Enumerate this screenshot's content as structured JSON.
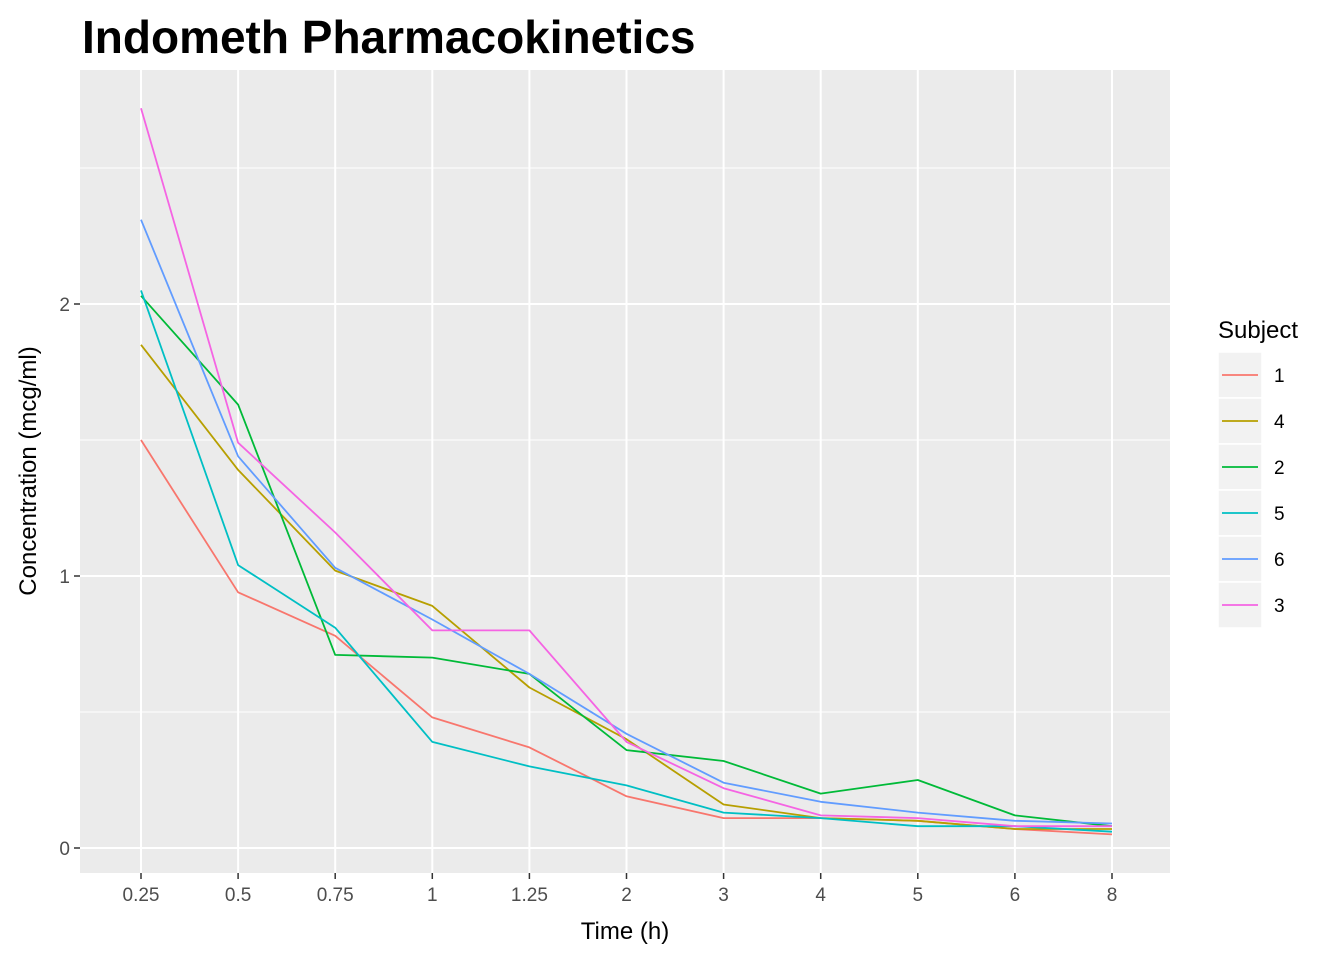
{
  "chart_data": {
    "type": "line",
    "title": "Indometh Pharmacokinetics",
    "xlabel": "Time (h)",
    "ylabel": "Concentration (mcg/ml)",
    "x_scale": "categorical",
    "categories": [
      "0.25",
      "0.5",
      "0.75",
      "1",
      "1.25",
      "2",
      "3",
      "4",
      "5",
      "6",
      "8"
    ],
    "yticks": [
      0,
      1,
      2
    ],
    "ylim": [
      -0.1,
      2.8
    ],
    "grid": true,
    "legend_title": "Subject",
    "legend_position": "right",
    "series": [
      {
        "name": "1",
        "color": "#F8766D",
        "values": [
          1.5,
          0.94,
          0.78,
          0.48,
          0.37,
          0.19,
          0.11,
          0.11,
          0.1,
          0.07,
          0.05
        ]
      },
      {
        "name": "4",
        "color": "#B79F00",
        "values": [
          1.85,
          1.39,
          1.02,
          0.89,
          0.59,
          0.4,
          0.16,
          0.11,
          0.1,
          0.07,
          0.07
        ]
      },
      {
        "name": "2",
        "color": "#00BA38",
        "values": [
          2.03,
          1.63,
          0.71,
          0.7,
          0.64,
          0.36,
          0.32,
          0.2,
          0.25,
          0.12,
          0.08
        ]
      },
      {
        "name": "5",
        "color": "#00BFC4",
        "values": [
          2.05,
          1.04,
          0.81,
          0.39,
          0.3,
          0.23,
          0.13,
          0.11,
          0.08,
          0.08,
          0.06
        ]
      },
      {
        "name": "6",
        "color": "#619CFF",
        "values": [
          2.31,
          1.44,
          1.03,
          0.84,
          0.64,
          0.42,
          0.24,
          0.17,
          0.13,
          0.1,
          0.09
        ]
      },
      {
        "name": "3",
        "color": "#F564E3",
        "values": [
          2.72,
          1.49,
          1.16,
          0.8,
          0.8,
          0.39,
          0.22,
          0.12,
          0.11,
          0.08,
          0.08
        ]
      }
    ]
  }
}
